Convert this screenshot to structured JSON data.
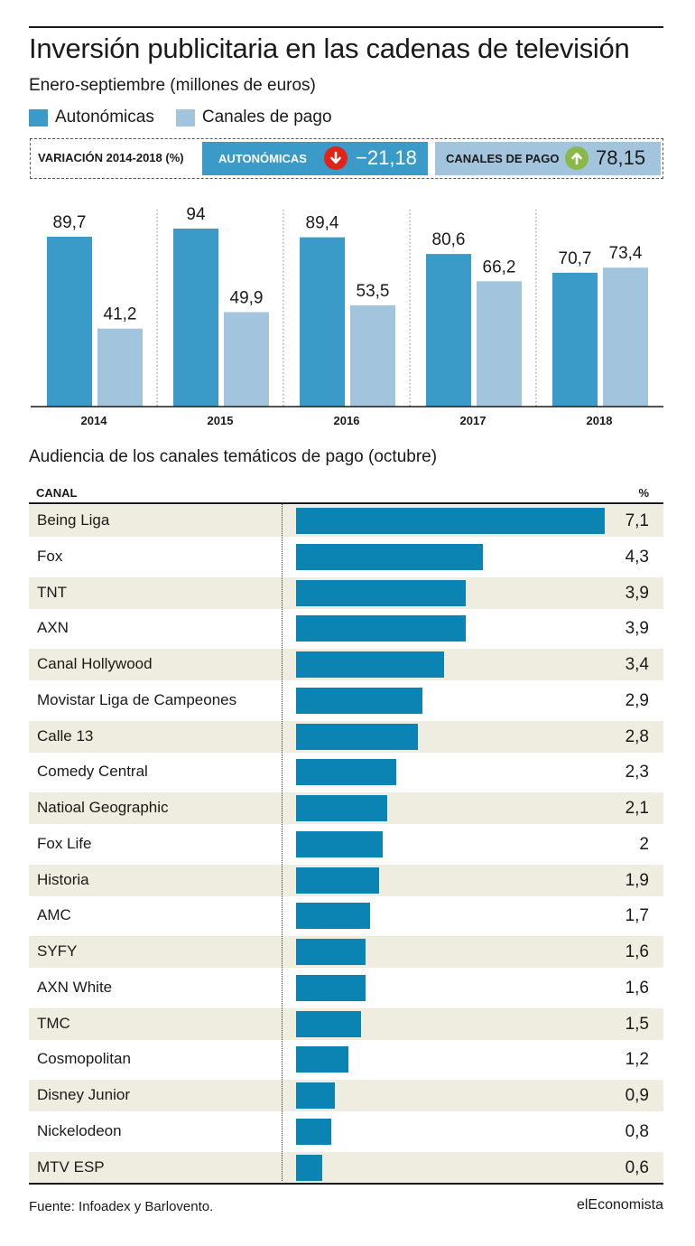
{
  "title": "Inversión publicitaria en las cadenas de televisión",
  "subtitle": "Enero-septiembre (millones de euros)",
  "legend": [
    {
      "label": "Autonómicas",
      "color": "#3a9bc9"
    },
    {
      "label": "Canales de pago",
      "color": "#a3c4dd"
    }
  ],
  "variation": {
    "label": "VARIACIÓN 2014-2018 (%)",
    "autonomicas": {
      "label": "AUTONÓMICAS",
      "value": "−21,18",
      "icon": "arrow-down-icon",
      "icon_color": "#e2231a"
    },
    "canales_pago": {
      "label": "CANALES DE PAGO",
      "value": "78,15",
      "icon": "arrow-up-icon",
      "icon_color": "#8bb84a"
    }
  },
  "chart_data": [
    {
      "type": "bar",
      "categories": [
        "2014",
        "2015",
        "2016",
        "2017",
        "2018"
      ],
      "series": [
        {
          "name": "Autonómicas",
          "values": [
            89.7,
            94,
            89.4,
            80.6,
            70.7
          ],
          "labels": [
            "89,7",
            "94",
            "89,4",
            "80,6",
            "70,7"
          ],
          "color": "#3a9bc9"
        },
        {
          "name": "Canales de pago",
          "values": [
            41.2,
            49.9,
            53.5,
            66.2,
            73.4
          ],
          "labels": [
            "41,2",
            "49,9",
            "53,5",
            "66,2",
            "73,4"
          ],
          "color": "#a3c4dd"
        }
      ],
      "ylim": [
        0,
        94
      ],
      "grid": false,
      "legend": "top-left"
    },
    {
      "type": "bar",
      "orientation": "horizontal",
      "title": "Audiencia de los canales temáticos de pago (octubre)",
      "column_headers": [
        "CANAL",
        "%"
      ],
      "categories": [
        "Being Liga",
        "Fox",
        "TNT",
        "AXN",
        "Canal Hollywood",
        "Movistar Liga de Campeones",
        "Calle 13",
        "Comedy Central",
        "Natioal Geographic",
        "Fox Life",
        "Historia",
        "AMC",
        "SYFY",
        "AXN White",
        "TMC",
        "Cosmopolitan",
        "Disney Junior",
        "Nickelodeon",
        "MTV ESP"
      ],
      "values": [
        7.1,
        4.3,
        3.9,
        3.9,
        3.4,
        2.9,
        2.8,
        2.3,
        2.1,
        2,
        1.9,
        1.7,
        1.6,
        1.6,
        1.5,
        1.2,
        0.9,
        0.8,
        0.6
      ],
      "labels": [
        "7,1",
        "4,3",
        "3,9",
        "3,9",
        "3,4",
        "2,9",
        "2,8",
        "2,3",
        "2,1",
        "2",
        "1,9",
        "1,7",
        "1,6",
        "1,6",
        "1,5",
        "1,2",
        "0,9",
        "0,8",
        "0,6"
      ],
      "color": "#0b83b3",
      "xlim": [
        0,
        7.1
      ]
    }
  ],
  "footer": {
    "source": "Fuente: Infoadex y Barlovento.",
    "brand": "elEconomista"
  }
}
